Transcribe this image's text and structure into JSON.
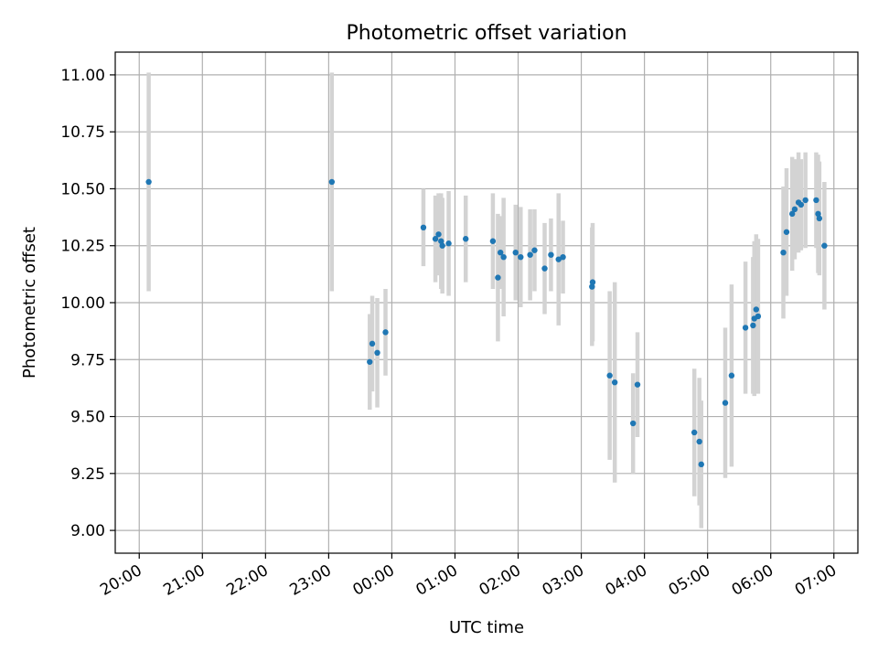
{
  "chart_data": {
    "type": "scatter",
    "title": "Photometric offset variation",
    "xlabel": "UTC time",
    "ylabel": "Photometric offset",
    "x_ticks": [
      "20:00",
      "21:00",
      "22:00",
      "23:00",
      "00:00",
      "01:00",
      "02:00",
      "03:00",
      "04:00",
      "05:00",
      "06:00",
      "07:00"
    ],
    "x_tick_hours": [
      0,
      1,
      2,
      3,
      4,
      5,
      6,
      7,
      8,
      9,
      10,
      11
    ],
    "xlim_hours": [
      -0.38,
      11.38
    ],
    "y_ticks": [
      "9.00",
      "9.25",
      "9.50",
      "9.75",
      "10.00",
      "10.25",
      "10.50",
      "10.75",
      "11.00"
    ],
    "y_tick_values": [
      9.0,
      9.25,
      9.5,
      9.75,
      10.0,
      10.25,
      10.5,
      10.75,
      11.0
    ],
    "ylim": [
      8.9,
      11.1
    ],
    "grid": true,
    "colors": {
      "points": "#1f77b4",
      "errorbars": "#d3d3d3",
      "grid": "#b0b0b0"
    },
    "series": [
      {
        "x_hours": [
          0.15,
          3.05,
          3.65,
          3.69,
          3.77,
          3.9,
          4.5,
          4.69,
          4.74,
          4.78,
          4.8,
          4.9,
          5.17,
          5.6,
          5.68,
          5.72,
          5.77,
          5.96,
          6.04,
          6.19,
          6.26,
          6.42,
          6.52,
          6.64,
          6.71,
          7.17,
          7.18,
          7.45,
          7.53,
          7.82,
          7.89,
          8.79,
          8.87,
          8.9,
          9.28,
          9.38,
          9.6,
          9.72,
          9.74,
          9.77,
          9.8,
          10.2,
          10.25,
          10.34,
          10.38,
          10.44,
          10.48,
          10.55,
          10.72,
          10.75,
          10.77,
          10.85
        ],
        "y": [
          10.53,
          10.53,
          9.74,
          9.82,
          9.78,
          9.87,
          10.33,
          10.28,
          10.3,
          10.27,
          10.25,
          10.26,
          10.28,
          10.27,
          10.11,
          10.22,
          10.2,
          10.22,
          10.2,
          10.21,
          10.23,
          10.15,
          10.21,
          10.19,
          10.2,
          10.07,
          10.09,
          9.68,
          9.65,
          9.47,
          9.64,
          9.43,
          9.39,
          9.29,
          9.56,
          9.68,
          9.89,
          9.9,
          9.93,
          9.97,
          9.94,
          10.22,
          10.31,
          10.39,
          10.41,
          10.44,
          10.43,
          10.45,
          10.45,
          10.39,
          10.37,
          10.25
        ],
        "yerr": [
          0.48,
          0.48,
          0.21,
          0.21,
          0.24,
          0.19,
          0.17,
          0.19,
          0.18,
          0.21,
          0.21,
          0.23,
          0.19,
          0.21,
          0.28,
          0.16,
          0.26,
          0.21,
          0.22,
          0.2,
          0.18,
          0.2,
          0.16,
          0.29,
          0.16,
          0.26,
          0.26,
          0.37,
          0.44,
          0.22,
          0.23,
          0.28,
          0.28,
          0.28,
          0.33,
          0.4,
          0.29,
          0.3,
          0.34,
          0.33,
          0.34,
          0.29,
          0.28,
          0.25,
          0.22,
          0.22,
          0.2,
          0.21,
          0.21,
          0.26,
          0.25,
          0.28
        ]
      }
    ]
  }
}
